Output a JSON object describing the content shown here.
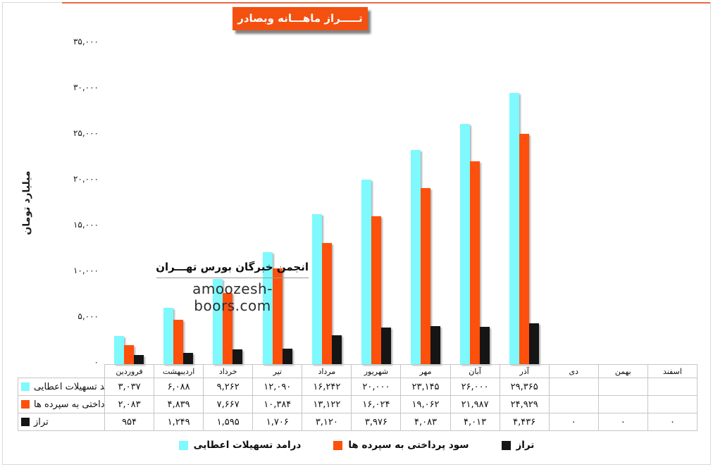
{
  "header": {
    "title": "تـــــراز ماهـــانه وبصادر"
  },
  "watermark": {
    "org": "انجمن خبرگان بورس تهـــران",
    "site": "amoozesh-boors.com"
  },
  "colors": {
    "accent_orange": "#f4500f",
    "bar_cyan": "#7ef9fd",
    "bar_orange": "#fd500d",
    "bar_black": "#151515",
    "table_border": "#c6c6c6"
  },
  "chart_data": {
    "type": "bar",
    "title": "تـــــراز ماهـــانه وبصادر",
    "xlabel": "",
    "ylabel": "میلیارد تومان",
    "ylim": [
      0,
      35000
    ],
    "gridlines": false,
    "legend_position": "bottom",
    "categories": [
      "فروردین",
      "اردیبهشت",
      "خرداد",
      "تیر",
      "مرداد",
      "شهریور",
      "مهر",
      "آبان",
      "آذر",
      "دی",
      "بهمن",
      "اسفند"
    ],
    "yticks": [
      0,
      5000,
      10000,
      15000,
      20000,
      25000,
      30000,
      35000
    ],
    "ytick_labels": [
      "۰",
      "۵,۰۰۰",
      "۱۰,۰۰۰",
      "۱۵,۰۰۰",
      "۲۰,۰۰۰",
      "۲۵,۰۰۰",
      "۳۰,۰۰۰",
      "۳۵,۰۰۰"
    ],
    "series": [
      {
        "key": "facilities-income",
        "name": "درامد تسهیلات اعطایی",
        "color": "#7ef9fd",
        "values": [
          3037,
          6088,
          9262,
          12090,
          16242,
          20000,
          23145,
          26000,
          29365,
          null,
          null,
          null
        ],
        "display": [
          "۳,۰۳۷",
          "۶,۰۸۸",
          "۹,۲۶۲",
          "۱۲,۰۹۰",
          "۱۶,۲۴۲",
          "۲۰,۰۰۰",
          "۲۳,۱۴۵",
          "۲۶,۰۰۰",
          "۲۹,۳۶۵",
          "",
          "",
          ""
        ]
      },
      {
        "key": "deposits-interest",
        "name": "سود پرداختی به سپرده ها",
        "color": "#fd500d",
        "values": [
          2083,
          4839,
          7667,
          10384,
          13122,
          16024,
          19062,
          21987,
          24929,
          null,
          null,
          null
        ],
        "display": [
          "۲,۰۸۳",
          "۴,۸۳۹",
          "۷,۶۶۷",
          "۱۰,۳۸۴",
          "۱۳,۱۲۲",
          "۱۶,۰۲۴",
          "۱۹,۰۶۲",
          "۲۱,۹۸۷",
          "۲۴,۹۲۹",
          "",
          "",
          ""
        ]
      },
      {
        "key": "balance",
        "name": "تراز",
        "color": "#151515",
        "values": [
          954,
          1249,
          1595,
          1706,
          3120,
          3976,
          4083,
          4013,
          4436,
          0,
          0,
          0
        ],
        "display": [
          "۹۵۴",
          "۱,۲۴۹",
          "۱,۵۹۵",
          "۱,۷۰۶",
          "۳,۱۲۰",
          "۳,۹۷۶",
          "۴,۰۸۳",
          "۴,۰۱۳",
          "۴,۴۳۶",
          "۰",
          "۰",
          "۰"
        ]
      }
    ]
  }
}
